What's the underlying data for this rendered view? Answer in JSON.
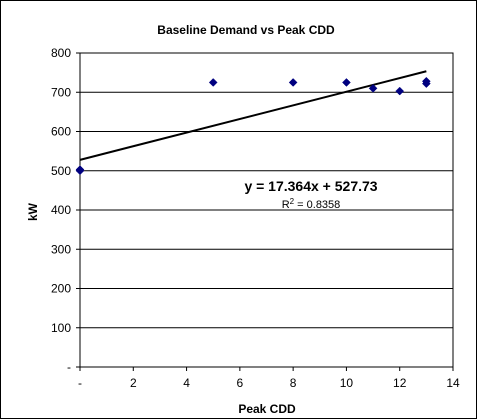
{
  "chart_data": {
    "type": "scatter",
    "title": "Baseline Demand vs Peak CDD",
    "xlabel": "Peak CDD",
    "ylabel": "kW",
    "xlim": [
      0,
      14
    ],
    "ylim": [
      0,
      800
    ],
    "x_ticks": [
      0,
      2,
      4,
      6,
      8,
      10,
      12,
      14
    ],
    "x_tick_labels": [
      "-",
      "2",
      "4",
      "6",
      "8",
      "10",
      "12",
      "14"
    ],
    "y_ticks": [
      0,
      100,
      200,
      300,
      400,
      500,
      600,
      700,
      800
    ],
    "y_tick_labels": [
      "-",
      "100",
      "200",
      "300",
      "400",
      "500",
      "600",
      "700",
      "800"
    ],
    "grid": "horizontal",
    "points": [
      {
        "x": 0,
        "y": 500
      },
      {
        "x": 0,
        "y": 503
      },
      {
        "x": 5,
        "y": 725
      },
      {
        "x": 8,
        "y": 725
      },
      {
        "x": 10,
        "y": 725
      },
      {
        "x": 11,
        "y": 710
      },
      {
        "x": 12,
        "y": 703
      },
      {
        "x": 13,
        "y": 722
      },
      {
        "x": 13,
        "y": 728
      }
    ],
    "trendline": {
      "slope": 17.364,
      "intercept": 527.73,
      "x_range": [
        0,
        13
      ]
    },
    "equation_label": "y = 17.364x + 527.73",
    "r2_label_prefix": "R",
    "r2_label_sup": "2",
    "r2_label_value": " = 0.8358",
    "marker_color": "#000080",
    "line_color": "#000000"
  }
}
